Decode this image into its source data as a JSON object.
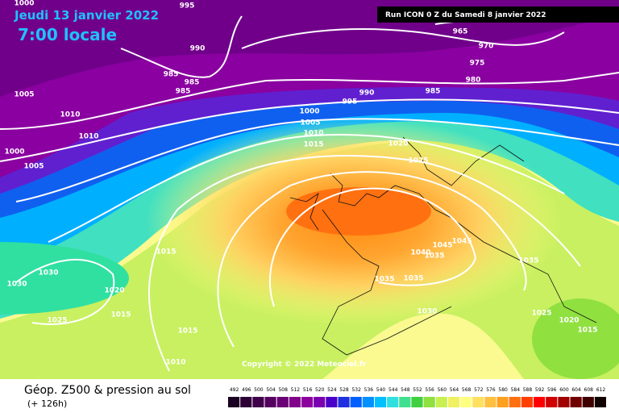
{
  "header": {
    "date": "Jeudi 13 janvier 2022",
    "time": "7:00 locale",
    "run": "Run ICON 0 Z du Samedi 8 janvier 2022"
  },
  "copyright": "Copyright © 2022 Meteociel.fr",
  "footer": {
    "title": "Géop. Z500 & pression au sol",
    "lead": "(+ 126h)"
  },
  "isobars": [
    "995",
    "1000",
    "990",
    "985",
    "985",
    "985",
    "1005",
    "1010",
    "1010",
    "1000",
    "1005",
    "965",
    "970",
    "975",
    "980",
    "985",
    "990",
    "995",
    "1000",
    "1005",
    "1010",
    "1015",
    "1020",
    "1025",
    "1015",
    "1030",
    "1030",
    "1020",
    "1015",
    "1025",
    "1015",
    "1010",
    "1045",
    "1045",
    "1040",
    "1035",
    "1035",
    "1035",
    "1030",
    "1035",
    "1025",
    "1020",
    "1015"
  ],
  "scale": [
    {
      "label": "492",
      "color": "#1a0022"
    },
    {
      "label": "496",
      "color": "#2d0035"
    },
    {
      "label": "500",
      "color": "#40004a"
    },
    {
      "label": "504",
      "color": "#55005f"
    },
    {
      "label": "508",
      "color": "#6a0075"
    },
    {
      "label": "512",
      "color": "#80008a"
    },
    {
      "label": "516",
      "color": "#8e009e"
    },
    {
      "label": "520",
      "color": "#7a00b0"
    },
    {
      "label": "524",
      "color": "#4a00c8"
    },
    {
      "label": "528",
      "color": "#2030e0"
    },
    {
      "label": "532",
      "color": "#0060ff"
    },
    {
      "label": "536",
      "color": "#0090ff"
    },
    {
      "label": "540",
      "color": "#00c0ff"
    },
    {
      "label": "544",
      "color": "#30e0e0"
    },
    {
      "label": "548",
      "color": "#40e090"
    },
    {
      "label": "552",
      "color": "#40d040"
    },
    {
      "label": "556",
      "color": "#90e040"
    },
    {
      "label": "560",
      "color": "#c8f050"
    },
    {
      "label": "564",
      "color": "#f0f060"
    },
    {
      "label": "568",
      "color": "#ffff80"
    },
    {
      "label": "572",
      "color": "#ffe060"
    },
    {
      "label": "576",
      "color": "#ffc040"
    },
    {
      "label": "580",
      "color": "#ffa020"
    },
    {
      "label": "584",
      "color": "#ff7010"
    },
    {
      "label": "588",
      "color": "#ff4000"
    },
    {
      "label": "592",
      "color": "#ff0000"
    },
    {
      "label": "596",
      "color": "#d00000"
    },
    {
      "label": "600",
      "color": "#a00000"
    },
    {
      "label": "604",
      "color": "#700000"
    },
    {
      "label": "608",
      "color": "#400000"
    },
    {
      "label": "612",
      "color": "#100000"
    }
  ]
}
